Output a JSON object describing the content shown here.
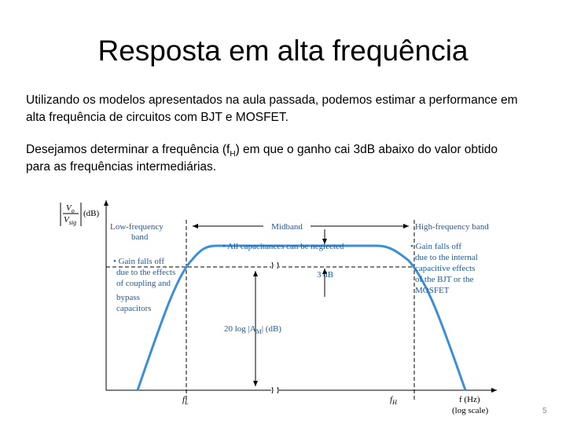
{
  "title": "Resposta em alta frequência",
  "paragraphs": [
    {
      "lines": [
        "Utilizando os modelos apresentados na aula passada, podemos estimar a performance em",
        "alta frequência de circuitos com BJT e MOSFET."
      ]
    },
    {
      "line1_before": "Desejamos determinar a frequência (f",
      "line1_sub": "H",
      "line1_after": ") em que o ganho cai 3dB abaixo do valor obtido",
      "line2": "para as frequências intermediárias."
    }
  ],
  "figure": {
    "y_axis": {
      "num": "V",
      "num_sub": "o",
      "den": "V",
      "den_sub": "sig",
      "unit": "(dB)"
    },
    "low_band": [
      "Low-frequency",
      "band"
    ],
    "midband": "Midband",
    "high_band": "High-frequency band",
    "mid_note": "• All capacitances can be neglected",
    "low_note": [
      "• Gain falls off",
      "due to the effects",
      "of coupling and",
      "bypass",
      "capacitors"
    ],
    "high_note": [
      "• Gain falls off",
      "due to the internal",
      "capacitive effects",
      "of the BJT or the",
      "MOSFET"
    ],
    "drop": "3 dB",
    "gain_before": "20 log |A",
    "gain_sub": "M",
    "gain_after": "| (dB)",
    "fl": "f",
    "fl_sub": "L",
    "fh": "f",
    "fh_sub": "H",
    "x_axis": [
      "f (Hz)",
      "(log scale)"
    ]
  },
  "page_number": "5"
}
